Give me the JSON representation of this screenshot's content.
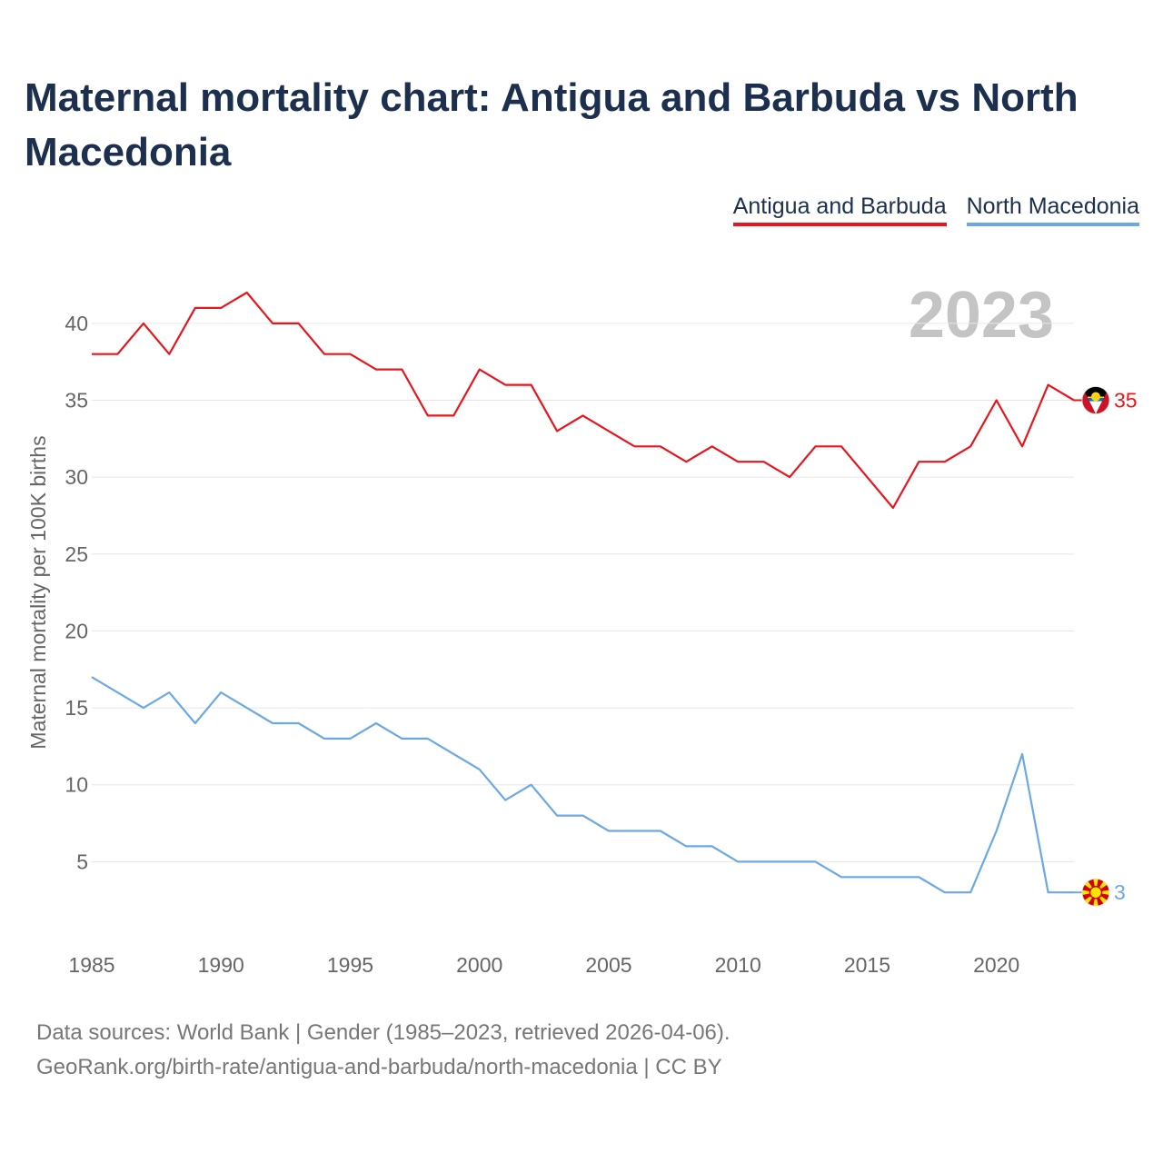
{
  "header": {
    "title": "Maternal mortality chart: Antigua and Barbuda vs North Macedonia"
  },
  "legend": {
    "items": [
      "Antigua and Barbuda",
      "North Macedonia"
    ]
  },
  "colors": {
    "antigua": "#e8161c",
    "macedonia": "#6aa8e6",
    "title": "#1c2f4e",
    "grid": "#e6e6e6",
    "year_watermark": "#c4c4c4"
  },
  "footer": {
    "line1": "Data sources: World Bank | Gender (1985–2023, retrieved 2026-04-06).",
    "line2": "GeoRank.org/birth-rate/antigua-and-barbuda/north-macedonia | CC BY"
  },
  "chart_data": {
    "type": "line",
    "title": "Maternal mortality chart: Antigua and Barbuda vs North Macedonia",
    "xlabel": "",
    "ylabel": "Maternal mortality per 100K births",
    "year_label": "2023",
    "x": [
      1985,
      1986,
      1987,
      1988,
      1989,
      1990,
      1991,
      1992,
      1993,
      1994,
      1995,
      1996,
      1997,
      1998,
      1999,
      2000,
      2001,
      2002,
      2003,
      2004,
      2005,
      2006,
      2007,
      2008,
      2009,
      2010,
      2011,
      2012,
      2013,
      2014,
      2015,
      2016,
      2017,
      2018,
      2019,
      2020,
      2021,
      2022,
      2023
    ],
    "xlim": [
      1985,
      2023
    ],
    "ylim": [
      0,
      42
    ],
    "x_ticks": [
      "1985",
      "1990",
      "1995",
      "2000",
      "2005",
      "2010",
      "2015",
      "2020"
    ],
    "y_ticks": [
      "5",
      "10",
      "15",
      "20",
      "25",
      "30",
      "35",
      "40"
    ],
    "grid": true,
    "legend_position": "top-right",
    "series": [
      {
        "name": "Antigua and Barbuda",
        "end_label": "35",
        "flag": "antigua-flag-icon",
        "values": [
          38,
          38,
          40,
          38,
          41,
          41,
          42,
          40,
          40,
          38,
          38,
          37,
          37,
          34,
          34,
          37,
          36,
          36,
          33,
          34,
          33,
          32,
          32,
          31,
          32,
          31,
          31,
          30,
          32,
          32,
          30,
          28,
          31,
          31,
          32,
          35,
          32,
          36,
          35
        ]
      },
      {
        "name": "North Macedonia",
        "end_label": "3",
        "flag": "north-macedonia-flag-icon",
        "values": [
          17,
          16,
          15,
          16,
          14,
          16,
          15,
          14,
          14,
          13,
          13,
          14,
          13,
          13,
          12,
          11,
          9,
          10,
          8,
          8,
          7,
          7,
          7,
          6,
          6,
          5,
          5,
          5,
          5,
          4,
          4,
          4,
          4,
          3,
          3,
          7,
          12,
          3,
          3
        ]
      }
    ]
  }
}
